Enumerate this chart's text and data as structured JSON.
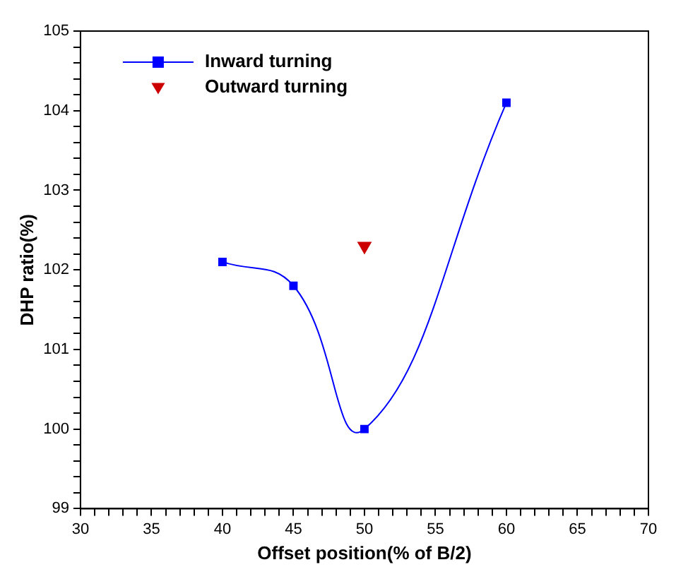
{
  "chart_data": {
    "type": "line",
    "xlabel": "Offset position(% of B/2)",
    "ylabel": "DHP ratio(%)",
    "xlim": [
      30,
      70
    ],
    "xticks": [
      30,
      35,
      40,
      45,
      50,
      55,
      60,
      65,
      70
    ],
    "ylim": [
      99,
      105
    ],
    "yticks": [
      99,
      100,
      101,
      102,
      103,
      104,
      105
    ],
    "grid": false,
    "legend": "top left",
    "series": [
      {
        "name": "Inward turning",
        "color": "#0000ff",
        "marker": "square",
        "line_style": "solid",
        "x": [
          40,
          45,
          50,
          60
        ],
        "values": [
          102.1,
          101.8,
          100.0,
          104.1
        ]
      },
      {
        "name": "Outward turning",
        "type": "scatter",
        "color": "#cc0000",
        "marker": "triangle",
        "x": [
          50
        ],
        "values": [
          102.3
        ]
      }
    ]
  }
}
